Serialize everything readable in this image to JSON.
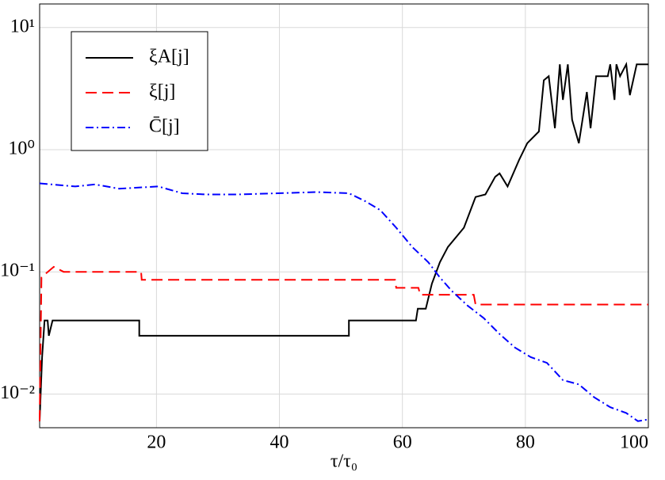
{
  "chart_data": {
    "type": "line",
    "xlabel": "τ/τ₀",
    "xlim": [
      1,
      100
    ],
    "xticks": [
      20,
      40,
      60,
      80,
      100
    ],
    "ylim": [
      0.0053,
      15.6
    ],
    "ylog": true,
    "yticks": [
      {
        "value": 0.01,
        "label": "10⁻²"
      },
      {
        "value": 0.1,
        "label": "10⁻¹"
      },
      {
        "value": 1,
        "label": "10⁰"
      },
      {
        "value": 10,
        "label": "10¹"
      }
    ],
    "grid": true,
    "legend": "upper left",
    "series": [
      {
        "name": "ξA[j]",
        "color": "#000000",
        "dash": "solid",
        "x": [
          1,
          1.4,
          1.8,
          2.3,
          2.5,
          3.1,
          17.2,
          17.2,
          51.3,
          51.3,
          62.2,
          62.5,
          63.8,
          64.8,
          66.1,
          67.4,
          70,
          71.9,
          73.5,
          75.1,
          75.8,
          77.1,
          79,
          80.3,
          82.2,
          83,
          83.8,
          84.8,
          85.6,
          86.1,
          86.9,
          87.6,
          88.7,
          90,
          90.6,
          91.5,
          93.4,
          93.8,
          94.5,
          94.8,
          95.4,
          96.4,
          97,
          98.1,
          100
        ],
        "values": [
          0.006,
          0.02,
          0.04,
          0.04,
          0.03,
          0.04,
          0.04,
          0.03,
          0.03,
          0.04,
          0.04,
          0.05,
          0.05,
          0.08,
          0.12,
          0.16,
          0.23,
          0.41,
          0.43,
          0.6,
          0.64,
          0.5,
          0.83,
          1.13,
          1.41,
          3.7,
          4,
          1.5,
          5,
          2.56,
          5,
          1.76,
          1.13,
          2.97,
          1.5,
          4,
          4,
          5,
          2.56,
          5,
          4,
          5,
          2.8,
          5,
          5
        ]
      },
      {
        "name": "ξ[j]",
        "color": "#ff0000",
        "dash": "dashed",
        "x": [
          1,
          1.3,
          1.8,
          3.3,
          4.9,
          17.5,
          17.6,
          58.8,
          59,
          62.6,
          62.9,
          71.6,
          71.9,
          100
        ],
        "values": [
          0.006,
          0.09,
          0.095,
          0.11,
          0.1,
          0.1,
          0.086,
          0.086,
          0.074,
          0.074,
          0.065,
          0.065,
          0.054,
          0.054
        ]
      },
      {
        "name": "C̄[j]",
        "color": "#0000ff",
        "dash": "dashdot",
        "x": [
          1,
          6.8,
          10,
          13.9,
          20.3,
          24.2,
          28.1,
          33.2,
          39.7,
          46.1,
          51.3,
          53.9,
          56.4,
          59,
          61.6,
          64.2,
          66.1,
          68,
          70.6,
          73.2,
          75.8,
          78.3,
          80.9,
          83.5,
          86.1,
          88.7,
          91.2,
          93.8,
          96.4,
          98.3,
          100
        ],
        "values": [
          0.53,
          0.5,
          0.52,
          0.48,
          0.5,
          0.44,
          0.43,
          0.43,
          0.44,
          0.45,
          0.44,
          0.38,
          0.32,
          0.23,
          0.16,
          0.12,
          0.09,
          0.07,
          0.053,
          0.042,
          0.031,
          0.024,
          0.02,
          0.018,
          0.013,
          0.012,
          0.0094,
          0.0078,
          0.007,
          0.006,
          0.0062
        ]
      }
    ]
  }
}
